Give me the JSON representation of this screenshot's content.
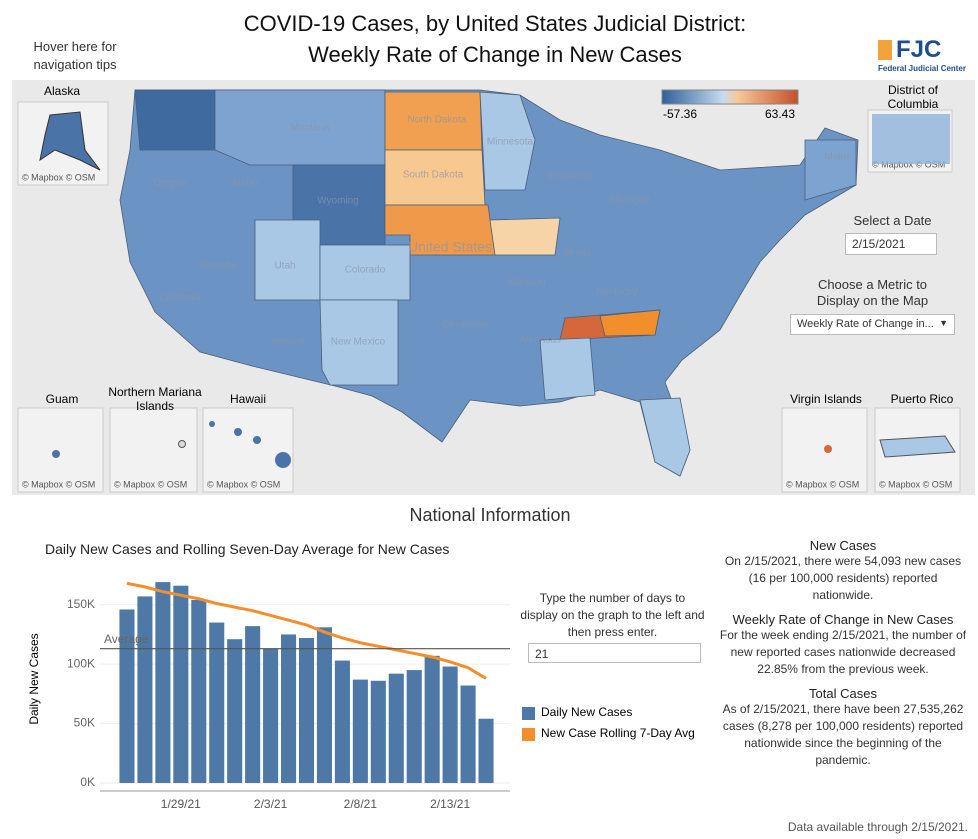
{
  "header": {
    "title_line1": "COVID-19 Cases, by United States Judicial District:",
    "title_line2": "Weekly Rate of Change in New Cases",
    "nav_tips": "Hover here for navigation tips",
    "logo": "FJC",
    "logo_subtitle": "Federal Judicial Center"
  },
  "map": {
    "legend": {
      "min": -57.36,
      "max": 63.43
    },
    "labels": [
      "Montana",
      "North Dakota",
      "South Dakota",
      "Wyoming",
      "Oregon",
      "Idaho",
      "Nevada",
      "Utah",
      "Colorado",
      "California",
      "Arizona",
      "New Mexico",
      "United States",
      "Minnesota",
      "Wisconsin",
      "Michigan",
      "Illinois",
      "Missouri",
      "Kentucky",
      "Oklahoma",
      "Arkansas",
      "Maine"
    ],
    "insets": [
      {
        "name": "Alaska",
        "attribution": "© Mapbox © OSM"
      },
      {
        "name": "District of Columbia",
        "attribution": "© Mapbox © OSM"
      },
      {
        "name": "Guam",
        "attribution": "© Mapbox © OSM"
      },
      {
        "name": "Northern Mariana Islands",
        "attribution": "© Mapbox © OSM"
      },
      {
        "name": "Hawaii",
        "attribution": "© Mapbox © OSM"
      },
      {
        "name": "Virgin Islands",
        "attribution": "© Mapbox © OSM"
      },
      {
        "name": "Puerto Rico",
        "attribution": "© Mapbox © OSM"
      }
    ],
    "date_label": "Select a Date",
    "date_value": "2/15/2021",
    "metric_label": "Choose a Metric to Display on the Map",
    "metric_value": "Weekly Rate of Change in..."
  },
  "national": {
    "heading": "National Information",
    "days_prompt": "Type the number of days to display on the graph to the left and then press enter.",
    "days_value": "21",
    "panels": [
      {
        "title": "New Cases",
        "text": "On 2/15/2021, there were 54,093 new cases (16 per 100,000 residents) reported nationwide."
      },
      {
        "title": "Weekly Rate of Change in New Cases",
        "text": "For the week ending 2/15/2021, the number of new reported cases nationwide decreased 22.85% from the previous week."
      },
      {
        "title": "Total Cases",
        "text": "As of 2/15/2021, there have been 27,535,262 cases (8,278 per 100,000 residents) reported nationwide since the beginning of the pandemic."
      }
    ],
    "footer": "Data available through 2/15/2021."
  },
  "chart_data": {
    "type": "bar",
    "title": "Daily New Cases and Rolling Seven-Day Average for New Cases",
    "y_label": "Daily New Cases",
    "categories": [
      null,
      null,
      null,
      "1/29/21",
      null,
      null,
      null,
      null,
      "2/3/21",
      null,
      null,
      null,
      null,
      "2/8/21",
      null,
      null,
      null,
      null,
      "2/13/21",
      null,
      null
    ],
    "series": [
      {
        "name": "Daily New Cases",
        "color": "#4e79a7",
        "type": "bar",
        "values": [
          146000,
          157000,
          169000,
          166000,
          154000,
          135000,
          121000,
          132000,
          113000,
          125000,
          122000,
          131000,
          103000,
          87000,
          86000,
          92000,
          95000,
          107000,
          98000,
          82000,
          54093
        ]
      },
      {
        "name": "New Case Rolling 7-Day Avg",
        "color": "#f28e2b",
        "type": "line",
        "values": [
          168000,
          165000,
          161000,
          158000,
          155000,
          151000,
          148000,
          145000,
          141000,
          137000,
          133000,
          127000,
          122000,
          118000,
          115000,
          112000,
          109000,
          106000,
          102000,
          97000,
          88000
        ]
      }
    ],
    "average": {
      "label": "Average",
      "value": 113000
    },
    "ylim": [
      0,
      175000
    ],
    "yticks": [
      {
        "value": 0,
        "label": "0K"
      },
      {
        "value": 50000,
        "label": "50K"
      },
      {
        "value": 100000,
        "label": "100K"
      },
      {
        "value": 150000,
        "label": "150K"
      }
    ],
    "grid": true
  }
}
